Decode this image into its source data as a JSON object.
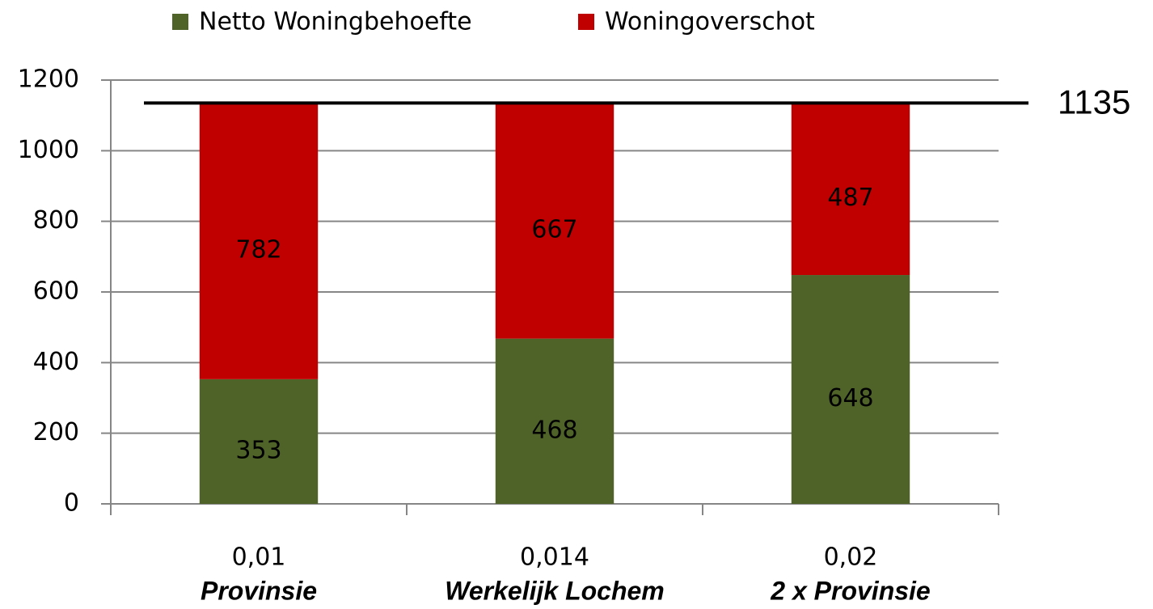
{
  "chart_data": {
    "type": "stacked_bar",
    "categories": [
      [
        "0,01",
        "Provinsie"
      ],
      [
        "0,014",
        "Werkelijk Lochem"
      ],
      [
        "0,02",
        "2 x Provinsie"
      ]
    ],
    "series": [
      {
        "name": "Netto Woningbehoefte",
        "color": "#4f6228",
        "values": [
          353,
          468,
          648
        ]
      },
      {
        "name": "Woningoverschot",
        "color": "#c00000",
        "values": [
          782,
          667,
          487
        ]
      }
    ],
    "ylim": [
      0,
      1200
    ],
    "yticks": [
      0,
      200,
      400,
      600,
      800,
      1000,
      1200
    ],
    "grid": true,
    "legend": "top",
    "reference_line": 1135
  }
}
